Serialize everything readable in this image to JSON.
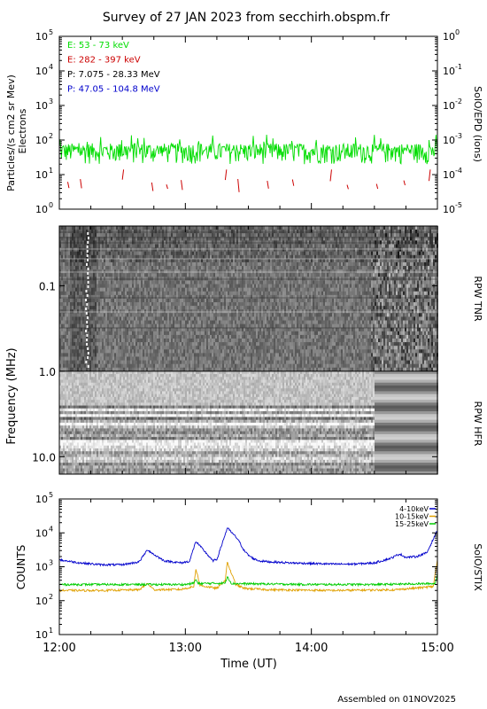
{
  "title": "Survey of 27 JAN 2023 from secchirh.obspm.fr",
  "footer": "Assembled on 01NOV2025",
  "x_axis": {
    "label": "Time (UT)",
    "ticks": [
      "12:00",
      "13:00",
      "14:00",
      "15:00"
    ]
  },
  "colors": {
    "electrons_low": "#00dd00",
    "electrons_high": "#cc0000",
    "protons_low": "#000000",
    "protons_high": "#0000cc",
    "stix_4_10": "#0000cc",
    "stix_10_15": "#e0a000",
    "stix_15_25": "#00cc00"
  },
  "chart_data": [
    {
      "type": "line",
      "panel": "epd",
      "title": "",
      "ylabel": "Particles/(s cm2 sr Mev)",
      "ylabel_sub": "Electrons",
      "right_label": "SolO/EPD (ions)",
      "scale": "log",
      "ylim": [
        1,
        100000
      ],
      "yticks": [
        {
          "base": "10",
          "exp": "0"
        },
        {
          "base": "10",
          "exp": "1"
        },
        {
          "base": "10",
          "exp": "2"
        },
        {
          "base": "10",
          "exp": "3"
        },
        {
          "base": "10",
          "exp": "4"
        },
        {
          "base": "10",
          "exp": "5"
        }
      ],
      "right_ylim": [
        1e-05,
        1
      ],
      "right_yticks": [
        {
          "base": "10",
          "exp": "0"
        },
        {
          "base": "10",
          "exp": "-1"
        },
        {
          "base": "10",
          "exp": "-2"
        },
        {
          "base": "10",
          "exp": "-3"
        },
        {
          "base": "10",
          "exp": "-4"
        },
        {
          "base": "10",
          "exp": "-5"
        }
      ],
      "legend_position": "top-left",
      "legend": [
        {
          "text": "E: 53 - 73 keV",
          "color": "#00dd00"
        },
        {
          "text": "E: 282 - 397 keV",
          "color": "#cc0000"
        },
        {
          "text": "P: 7.075 - 28.33 MeV",
          "color": "#000000"
        },
        {
          "text": "P: 47.05 - 104.8 MeV",
          "color": "#0000cc"
        }
      ],
      "series": [
        {
          "name": "E: 53 - 73 keV",
          "style": "noisy",
          "baseline": 50,
          "x_range": [
            "12:00",
            "15:00"
          ]
        },
        {
          "name": "E: 282 - 397 keV",
          "style": "sparse",
          "baseline": 6,
          "x_range": [
            "12:00",
            "15:00"
          ]
        }
      ]
    },
    {
      "type": "heatmap",
      "panel": "rpw",
      "ylabel": "Frequency (MHz)",
      "scale": "log",
      "ylim": [
        0.02,
        16
      ],
      "yticks": [
        "0.1",
        "1.0",
        "10.0"
      ],
      "bands": [
        {
          "name": "RPW TNR",
          "range_mhz": [
            0.02,
            1.0
          ]
        },
        {
          "name": "RPW HFR",
          "range_mhz": [
            1.0,
            16
          ]
        }
      ]
    },
    {
      "type": "line",
      "panel": "stix",
      "ylabel": "COUNTS",
      "right_label": "SolO/STIX",
      "scale": "log",
      "ylim": [
        10,
        100000
      ],
      "yticks": [
        {
          "base": "10",
          "exp": "1"
        },
        {
          "base": "10",
          "exp": "2"
        },
        {
          "base": "10",
          "exp": "3"
        },
        {
          "base": "10",
          "exp": "4"
        },
        {
          "base": "10",
          "exp": "5"
        }
      ],
      "legend_position": "top-right",
      "x_range": [
        "12:00",
        "15:00"
      ],
      "series": [
        {
          "name": "4-10keV",
          "color": "#0000cc",
          "x_minutes": [
            0,
            10,
            20,
            30,
            38,
            42,
            45,
            50,
            58,
            62,
            65,
            70,
            73,
            75,
            80,
            85,
            88,
            90,
            92,
            95,
            100,
            110,
            120,
            130,
            140,
            150,
            158,
            162,
            165,
            170,
            175,
            180
          ],
          "values": [
            1600,
            1300,
            1150,
            1150,
            1400,
            3200,
            2300,
            1500,
            1300,
            1450,
            5600,
            2500,
            1500,
            1650,
            14000,
            6500,
            3000,
            2200,
            1800,
            1500,
            1400,
            1300,
            1250,
            1200,
            1200,
            1300,
            1800,
            2400,
            1900,
            2000,
            2600,
            12000
          ]
        },
        {
          "name": "10-15keV",
          "color": "#e0a000",
          "x_minutes": [
            0,
            20,
            38,
            42,
            45,
            58,
            64,
            65,
            67,
            75,
            79,
            80,
            81,
            84,
            88,
            100,
            130,
            160,
            178,
            180
          ],
          "values": [
            200,
            200,
            210,
            320,
            210,
            215,
            260,
            880,
            280,
            230,
            400,
            1400,
            900,
            300,
            230,
            210,
            200,
            210,
            260,
            1600
          ]
        },
        {
          "name": "15-25keV",
          "color": "#00cc00",
          "x_minutes": [
            0,
            30,
            60,
            64,
            65,
            66,
            79,
            80,
            82,
            120,
            150,
            179,
            180
          ],
          "values": [
            300,
            300,
            300,
            330,
            420,
            320,
            330,
            520,
            320,
            300,
            300,
            320,
            650
          ]
        }
      ]
    }
  ]
}
